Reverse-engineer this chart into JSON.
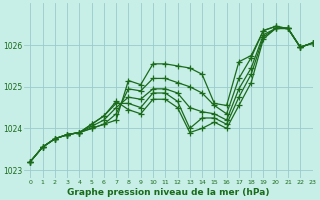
{
  "title": "",
  "xlabel": "Graphe pression niveau de la mer (hPa)",
  "xlim": [
    -0.5,
    23
  ],
  "ylim": [
    1022.8,
    1027.0
  ],
  "yticks": [
    1023,
    1024,
    1025,
    1026
  ],
  "xticks": [
    0,
    1,
    2,
    3,
    4,
    5,
    6,
    7,
    8,
    9,
    10,
    11,
    12,
    13,
    14,
    15,
    16,
    17,
    18,
    19,
    20,
    21,
    22,
    23
  ],
  "bg_color": "#c8eee8",
  "grid_color": "#99cccc",
  "line_color": "#1a6b1a",
  "marker": "+",
  "markersize": 4,
  "linewidth": 0.9,
  "series": [
    [
      1023.2,
      1023.55,
      1023.75,
      1023.85,
      1023.9,
      1024.0,
      1024.1,
      1024.2,
      1025.15,
      1025.05,
      1025.55,
      1025.55,
      1025.5,
      1025.45,
      1025.3,
      1024.6,
      1024.55,
      1025.6,
      1025.75,
      1026.35,
      1026.45,
      1026.4,
      1025.95,
      1026.05
    ],
    [
      1023.2,
      1023.55,
      1023.75,
      1023.85,
      1023.9,
      1024.0,
      1024.1,
      1024.35,
      1024.95,
      1024.9,
      1025.2,
      1025.2,
      1025.1,
      1025.0,
      1024.85,
      1024.55,
      1024.35,
      1025.2,
      1025.7,
      1026.35,
      1026.45,
      1026.4,
      1025.95,
      1026.05
    ],
    [
      1023.2,
      1023.55,
      1023.75,
      1023.85,
      1023.9,
      1024.05,
      1024.2,
      1024.5,
      1024.75,
      1024.7,
      1024.95,
      1024.95,
      1024.85,
      1024.5,
      1024.4,
      1024.35,
      1024.2,
      1024.95,
      1025.45,
      1026.25,
      1026.4,
      1026.4,
      1025.95,
      1026.05
    ],
    [
      1023.2,
      1023.55,
      1023.75,
      1023.85,
      1023.9,
      1024.1,
      1024.3,
      1024.6,
      1024.6,
      1024.5,
      1024.85,
      1024.85,
      1024.65,
      1024.0,
      1024.25,
      1024.25,
      1024.1,
      1024.75,
      1025.3,
      1026.2,
      1026.4,
      1026.4,
      1025.95,
      1026.05
    ],
    [
      1023.2,
      1023.55,
      1023.75,
      1023.85,
      1023.9,
      1024.1,
      1024.3,
      1024.65,
      1024.45,
      1024.35,
      1024.7,
      1024.7,
      1024.5,
      1023.9,
      1024.0,
      1024.15,
      1024.0,
      1024.55,
      1025.1,
      1026.15,
      1026.4,
      1026.4,
      1025.95,
      1026.05
    ]
  ]
}
